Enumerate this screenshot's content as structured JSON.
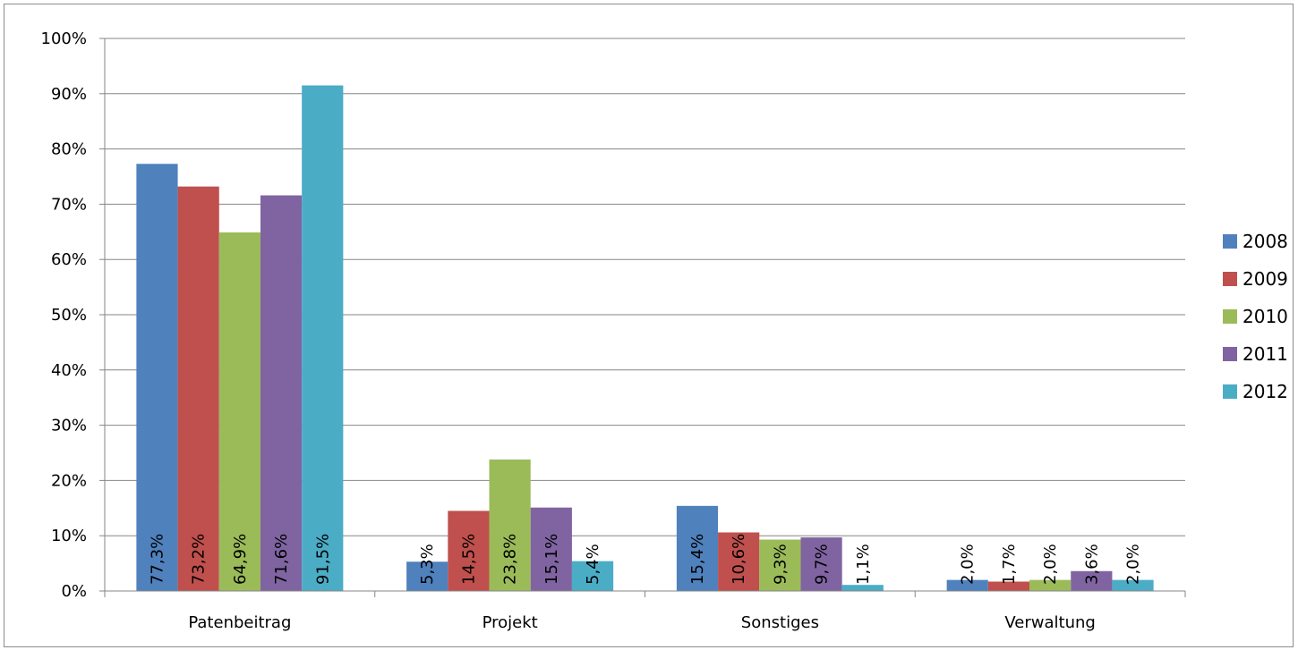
{
  "chart_data": {
    "type": "bar",
    "categories": [
      "Patenbeitrag",
      "Projekt",
      "Sonstiges",
      "Verwaltung"
    ],
    "series": [
      {
        "name": "2008",
        "color": "#4f81bd",
        "values": [
          77.3,
          5.3,
          15.4,
          2.0
        ],
        "labels": [
          "77,3%",
          "5,3%",
          "15,4%",
          "2,0%"
        ]
      },
      {
        "name": "2009",
        "color": "#c0504d",
        "values": [
          73.2,
          14.5,
          10.6,
          1.7
        ],
        "labels": [
          "73,2%",
          "14,5%",
          "10,6%",
          "1,7%"
        ]
      },
      {
        "name": "2010",
        "color": "#9bbb59",
        "values": [
          64.9,
          23.8,
          9.3,
          2.0
        ],
        "labels": [
          "64,9%",
          "23,8%",
          "9,3%",
          "2,0%"
        ]
      },
      {
        "name": "2011",
        "color": "#8064a2",
        "values": [
          71.6,
          15.1,
          9.7,
          3.6
        ],
        "labels": [
          "71,6%",
          "15,1%",
          "9,7%",
          "3,6%"
        ]
      },
      {
        "name": "2012",
        "color": "#4bacc6",
        "values": [
          91.5,
          5.4,
          1.1,
          2.0
        ],
        "labels": [
          "91,5%",
          "5,4%",
          "1,1%",
          "2,0%"
        ]
      }
    ],
    "yticks": [
      "0%",
      "10%",
      "20%",
      "30%",
      "40%",
      "50%",
      "60%",
      "70%",
      "80%",
      "90%",
      "100%"
    ],
    "ylim": [
      0,
      100
    ],
    "grid": true,
    "legend": "right",
    "title": "",
    "xlabel": "",
    "ylabel": ""
  }
}
